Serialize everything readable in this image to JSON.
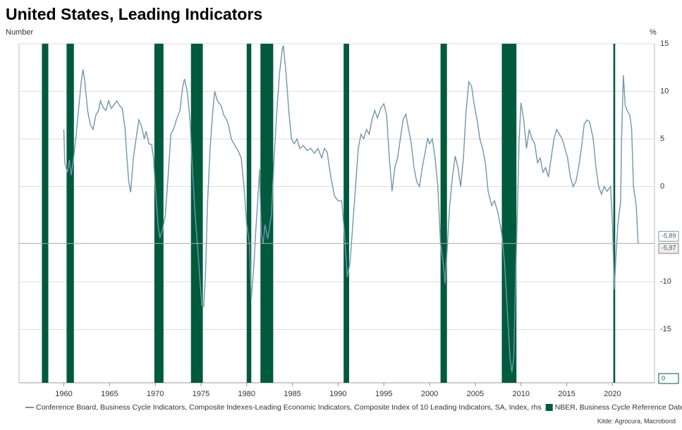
{
  "chart_data": {
    "type": "line",
    "title": "United States, Leading Indicators",
    "y_label": "Number",
    "y2_label": "%",
    "source": "Kilde: Agrocura, Macrobond",
    "xlim": [
      1955.1,
      2024.6
    ],
    "xticks": [
      1960,
      1965,
      1970,
      1975,
      1980,
      1985,
      1990,
      1995,
      2000,
      2005,
      2010,
      2015,
      2020
    ],
    "y2lim": [
      -20.6,
      15
    ],
    "y2ticks": [
      -15,
      -10,
      0,
      5,
      10,
      15
    ],
    "ylim": [
      0,
      1
    ],
    "grid": true,
    "series": [
      {
        "name": "Conference Board, Business Cycle Indicators, Composite Indexes-Leading Economic Indicators, Composite Index of 10 Leading Indicators, SA, Index, rhs",
        "color": "#6f97ad",
        "axis": "y2",
        "x": [
          1960.0,
          1960.1,
          1960.4,
          1960.6,
          1960.8,
          1961.0,
          1961.3,
          1961.6,
          1961.9,
          1962.1,
          1962.3,
          1962.6,
          1962.9,
          1963.2,
          1963.5,
          1963.8,
          1964.0,
          1964.3,
          1964.6,
          1964.9,
          1965.2,
          1965.5,
          1965.8,
          1966.1,
          1966.4,
          1966.7,
          1966.9,
          1967.1,
          1967.3,
          1967.6,
          1967.9,
          1968.2,
          1968.5,
          1968.8,
          1969.0,
          1969.3,
          1969.6,
          1969.8,
          1970.0,
          1970.3,
          1970.5,
          1970.8,
          1971.1,
          1971.4,
          1971.7,
          1972.0,
          1972.3,
          1972.7,
          1973.0,
          1973.2,
          1973.5,
          1973.8,
          1974.0,
          1974.3,
          1974.6,
          1974.9,
          1975.1,
          1975.3,
          1975.5,
          1975.7,
          1976.0,
          1976.3,
          1976.5,
          1976.8,
          1977.2,
          1977.5,
          1977.8,
          1978.0,
          1978.3,
          1978.6,
          1978.9,
          1979.1,
          1979.4,
          1979.7,
          1980.0,
          1980.3,
          1980.5,
          1980.8,
          1981.0,
          1981.3,
          1981.4,
          1981.6,
          1981.8,
          1982.0,
          1982.3,
          1982.7,
          1983.0,
          1983.3,
          1983.6,
          1983.9,
          1984.0,
          1984.3,
          1984.6,
          1984.9,
          1985.2,
          1985.5,
          1985.8,
          1986.2,
          1986.6,
          1987.0,
          1987.4,
          1987.8,
          1988.2,
          1988.5,
          1988.8,
          1989.2,
          1989.6,
          1990.0,
          1990.4,
          1990.7,
          1991.0,
          1991.3,
          1991.6,
          1991.9,
          1992.2,
          1992.5,
          1992.8,
          1993.1,
          1993.4,
          1993.7,
          1994.0,
          1994.3,
          1994.7,
          1995.0,
          1995.3,
          1995.6,
          1995.9,
          1996.2,
          1996.5,
          1996.8,
          1997.1,
          1997.4,
          1997.7,
          1998.0,
          1998.3,
          1998.6,
          1998.9,
          1999.2,
          1999.5,
          1999.8,
          2000.0,
          2000.3,
          2000.6,
          2000.9,
          2001.2,
          2001.5,
          2001.7,
          2001.9,
          2002.2,
          2002.5,
          2002.8,
          2003.1,
          2003.4,
          2003.7,
          2004.0,
          2004.3,
          2004.6,
          2004.9,
          2005.2,
          2005.5,
          2005.8,
          2006.1,
          2006.4,
          2006.8,
          2007.1,
          2007.5,
          2007.9,
          2008.2,
          2008.5,
          2008.8,
          2009.0,
          2009.2,
          2009.4,
          2009.6,
          2009.8,
          2010.0,
          2010.3,
          2010.6,
          2010.9,
          2011.2,
          2011.5,
          2011.8,
          2012.1,
          2012.4,
          2012.7,
          2013.0,
          2013.3,
          2013.6,
          2013.9,
          2014.2,
          2014.5,
          2014.8,
          2015.1,
          2015.4,
          2015.7,
          2016.0,
          2016.3,
          2016.6,
          2016.9,
          2017.2,
          2017.5,
          2017.9,
          2018.2,
          2018.5,
          2018.8,
          2019.1,
          2019.4,
          2019.8,
          2020.0,
          2020.2,
          2020.4,
          2020.6,
          2020.9,
          2021.0,
          2021.2,
          2021.4,
          2021.6,
          2021.9,
          2022.1,
          2022.3,
          2022.6,
          2022.8,
          2022.9
        ],
        "values": [
          6,
          2.5,
          1.5,
          2.8,
          1.2,
          2.5,
          5,
          8,
          11,
          12.3,
          11,
          8,
          6.5,
          6,
          7.5,
          8,
          9,
          8.3,
          8,
          9,
          8.2,
          8.6,
          9,
          8.5,
          8.2,
          6,
          3,
          0.5,
          -0.6,
          3,
          5,
          7,
          6.3,
          5,
          5.8,
          4.5,
          4.4,
          3,
          0,
          -4,
          -5.4,
          -4.5,
          -3,
          1,
          5.5,
          6,
          7,
          8,
          10.5,
          11.3,
          10,
          7,
          3,
          -2,
          -6,
          -10,
          -12.5,
          -12.6,
          -9,
          -2,
          4,
          8,
          10,
          9,
          8.5,
          7.5,
          7,
          6.5,
          5,
          4.5,
          4,
          3.7,
          3,
          0,
          -4,
          -6,
          -11.8,
          -8,
          -4.5,
          0,
          1.8,
          -5,
          -6,
          -4,
          -5.5,
          -3,
          3,
          8,
          12,
          14.5,
          14.8,
          12,
          8,
          5,
          4.5,
          5,
          4,
          4.3,
          3.8,
          4,
          3.5,
          4,
          3,
          4,
          3.6,
          1,
          -1,
          -1.5,
          -1.5,
          -5,
          -9.5,
          -8,
          -4,
          0,
          4,
          5.5,
          5,
          6,
          5.5,
          7,
          8,
          7.2,
          8.3,
          8.7,
          7.5,
          3,
          -0.5,
          2,
          3,
          5,
          7,
          7.6,
          6,
          4.5,
          2,
          0.5,
          0,
          2,
          3.5,
          5.1,
          4.5,
          5,
          3,
          0,
          -6,
          -8,
          -10.2,
          -7,
          -2,
          1,
          3.2,
          2,
          0,
          3,
          8,
          11,
          10.5,
          8.5,
          7,
          5,
          4,
          2.5,
          -0.5,
          -2,
          -1.5,
          -2.8,
          -5,
          -8,
          -13,
          -18,
          -19.5,
          -18,
          -10,
          -3,
          5,
          8.8,
          7,
          4,
          6,
          5,
          4.5,
          2.5,
          3,
          1.5,
          2,
          1,
          3,
          5,
          6,
          5.5,
          5,
          4,
          3,
          1,
          0,
          0.5,
          2,
          4,
          6.5,
          7,
          6.8,
          5,
          2,
          0,
          -0.8,
          0,
          -0.5,
          0,
          -4,
          -10.8,
          -7,
          -4,
          -1.5,
          5,
          11.7,
          8.5,
          8,
          7.5,
          6,
          0,
          -2,
          -5.9,
          -5.97
        ]
      },
      {
        "name": "NBER, Business Cycle Reference Dates, lhs",
        "color": "#005a3c",
        "type": "bar",
        "periods": [
          [
            1957.6,
            1958.3
          ],
          [
            1960.3,
            1961.1
          ],
          [
            1969.9,
            1970.9
          ],
          [
            1973.9,
            1975.2
          ],
          [
            1980.0,
            1980.5
          ],
          [
            1981.5,
            1982.9
          ],
          [
            1990.6,
            1991.2
          ],
          [
            2001.2,
            2001.9
          ],
          [
            2007.9,
            2009.5
          ],
          [
            2020.1,
            2020.3
          ]
        ],
        "values": [
          1,
          1,
          1,
          1,
          1,
          1,
          1,
          1,
          1,
          1
        ]
      }
    ],
    "annotations": [
      {
        "value": -5.89,
        "label": "-5,89",
        "axis": "y2"
      },
      {
        "value": -5.97,
        "label": "-5,97",
        "axis": "y2"
      },
      {
        "value": 0,
        "label": "0",
        "axis": "y"
      }
    ]
  }
}
